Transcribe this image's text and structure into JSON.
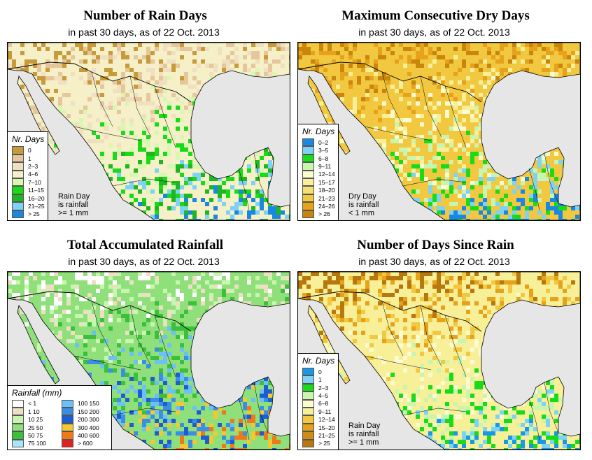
{
  "subtitle": {
    "prefix": "in past 30 days, as of",
    "date": "22 Oct. 2013"
  },
  "panels": [
    {
      "title": "Number of Rain Days",
      "legend": {
        "title": "Nr. Days",
        "items": [
          {
            "label": "0",
            "color": "#c89a3a"
          },
          {
            "label": "1",
            "color": "#e6c79b"
          },
          {
            "label": "2–3",
            "color": "#f0dfc0"
          },
          {
            "label": "4–6",
            "color": "#f5f0c8"
          },
          {
            "label": "7–10",
            "color": "#d8f7b0"
          },
          {
            "label": "11–15",
            "color": "#18dc18"
          },
          {
            "label": "16–20",
            "color": "#1fb71f"
          },
          {
            "label": "21–25",
            "color": "#7fd2f5"
          },
          {
            "label": "> 25",
            "color": "#1a88e0"
          }
        ]
      },
      "note": [
        "Rain Day",
        "is rainfall",
        ">= 1 mm"
      ]
    },
    {
      "title": "Maximum Consecutive Dry Days",
      "legend": {
        "title": "Nr. Days",
        "items": [
          {
            "label": "0–2",
            "color": "#1a88e0"
          },
          {
            "label": "3–5",
            "color": "#7fd2f5"
          },
          {
            "label": "6–8",
            "color": "#18dc18"
          },
          {
            "label": "9–11",
            "color": "#c8f5b0"
          },
          {
            "label": "12–14",
            "color": "#fbfbd0"
          },
          {
            "label": "15–17",
            "color": "#f8f098"
          },
          {
            "label": "18–20",
            "color": "#f5df70"
          },
          {
            "label": "21–23",
            "color": "#f2c840"
          },
          {
            "label": "24–26",
            "color": "#e6a21a"
          },
          {
            "label": "> 26",
            "color": "#c8860c"
          }
        ]
      },
      "note": [
        "Dry Day",
        "is rainfall",
        "< 1 mm"
      ]
    },
    {
      "title": "Total Accumulated Rainfall",
      "legend": {
        "title": "Rainfall (mm)",
        "items": [
          {
            "label": "< 1",
            "color": "#ffffff"
          },
          {
            "label": "1   10",
            "color": "#eedfc4"
          },
          {
            "label": "10   25",
            "color": "#c8f5b0"
          },
          {
            "label": "25   50",
            "color": "#8fe07a"
          },
          {
            "label": "50   75",
            "color": "#3cc03c"
          },
          {
            "label": "75   100",
            "color": "#a8e4fa"
          },
          {
            "label": "100   150",
            "color": "#6cc0f5"
          },
          {
            "label": "150   200",
            "color": "#3a8ee8"
          },
          {
            "label": "200   300",
            "color": "#1d5dd0"
          },
          {
            "label": "300   400",
            "color": "#f5c830"
          },
          {
            "label": "400   600",
            "color": "#f07818"
          },
          {
            "label": "> 600",
            "color": "#e62020"
          }
        ]
      },
      "note": []
    },
    {
      "title": "Number of Days Since Rain",
      "legend": {
        "title": "Nr. Days",
        "items": [
          {
            "label": "0",
            "color": "#1a98e8"
          },
          {
            "label": "1",
            "color": "#7fd2f5"
          },
          {
            "label": "2–3",
            "color": "#18dc18"
          },
          {
            "label": "4–5",
            "color": "#c8f5b0"
          },
          {
            "label": "6–8",
            "color": "#fbfbd0"
          },
          {
            "label": "9–11",
            "color": "#f8f098"
          },
          {
            "label": "12–14",
            "color": "#f2c840"
          },
          {
            "label": "15–20",
            "color": "#e6a21a"
          },
          {
            "label": "21–25",
            "color": "#d08a18"
          },
          {
            "label": "> 25",
            "color": "#b8780c"
          }
        ]
      },
      "note": [
        "Rain Day",
        "is rainfall",
        ">= 1 mm"
      ]
    }
  ],
  "colors": {
    "ocean": "#e6e6e6",
    "border": "#000000"
  }
}
